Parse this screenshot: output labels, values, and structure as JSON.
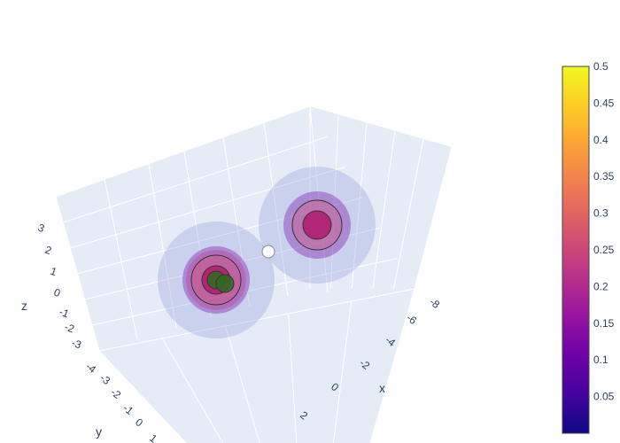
{
  "chart_data": {
    "type": "3d-scatter",
    "axes": {
      "x": {
        "title": "x",
        "ticks": [
          "-8",
          "-6",
          "-4",
          "-2",
          "0",
          "2"
        ]
      },
      "y": {
        "title": "y",
        "ticks": [
          "-4",
          "-3",
          "-2",
          "-1",
          "0",
          "1"
        ]
      },
      "z": {
        "title": "z",
        "ticks": [
          "-3",
          "-2",
          "-1",
          "0",
          "1",
          "2",
          "3"
        ]
      }
    },
    "colorbar": {
      "colorscale": "plasma",
      "range": [
        0,
        0.5
      ],
      "ticks": [
        "0.05",
        "0.1",
        "0.15",
        "0.2",
        "0.25",
        "0.3",
        "0.35",
        "0.4",
        "0.45",
        "0.5"
      ],
      "colors": [
        "#0d0887",
        "#46039f",
        "#7201a8",
        "#9c179e",
        "#bd3786",
        "#d8576b",
        "#ed7953",
        "#fb9f3a",
        "#fdca26",
        "#f0f921"
      ]
    },
    "series": [
      {
        "x": 0.5,
        "y": -2.5,
        "z": -1.2,
        "value": 0.0
      },
      {
        "x": 0.5,
        "y": -2.5,
        "z": -1.2,
        "value": 0.1
      },
      {
        "x": 0.5,
        "y": -2.5,
        "z": -1.2,
        "value": 0.2
      },
      {
        "x": 0.5,
        "y": -2.5,
        "z": -1.2,
        "value": 0.3
      },
      {
        "x": 0.5,
        "y": -2.5,
        "z": -1.2,
        "value": 0.25
      },
      {
        "x": 0.5,
        "y": -2.5,
        "z": -1.2,
        "value": 0.45
      },
      {
        "x": 0.3,
        "y": -2.3,
        "z": -1.3,
        "value": 0.45
      },
      {
        "x": -6.5,
        "y": -0.5,
        "z": 2.0,
        "value": 0.0
      },
      {
        "x": -6.5,
        "y": -0.5,
        "z": 2.0,
        "value": 0.1
      },
      {
        "x": -6.5,
        "y": -0.5,
        "z": 2.0,
        "value": 0.3
      },
      {
        "x": -6.5,
        "y": -0.5,
        "z": 2.0,
        "value": 0.25
      },
      {
        "x": -3.0,
        "y": -1.5,
        "z": 0.5,
        "value": 0.5
      }
    ]
  }
}
